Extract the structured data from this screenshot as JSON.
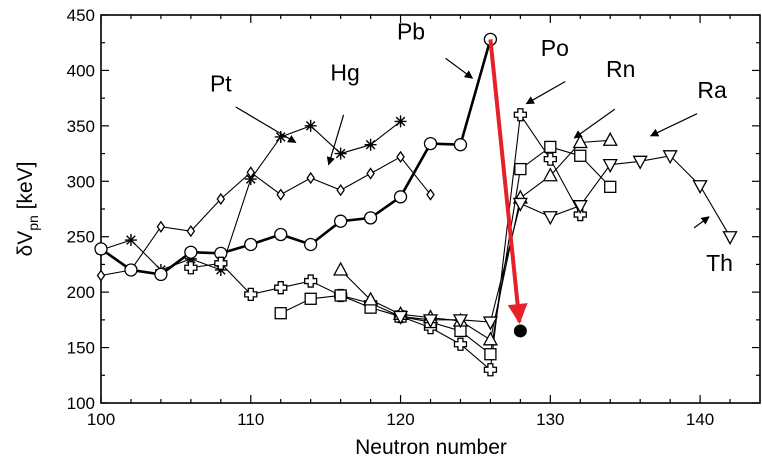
{
  "chart_data": {
    "type": "line",
    "xlabel": "Neutron number",
    "ylabel": {
      "main": "δV",
      "sub": "pn",
      "unit": " [keV]"
    },
    "xlim": [
      100,
      144
    ],
    "ylim": [
      100,
      450
    ],
    "x_ticks": [
      100,
      110,
      120,
      130,
      140
    ],
    "y_ticks": [
      100,
      150,
      200,
      250,
      300,
      350,
      400,
      450
    ],
    "grid": false,
    "legend": "none",
    "series": [
      {
        "name": "Pt",
        "marker": "asterisk",
        "bold": false,
        "x": [
          100,
          102,
          104,
          106,
          108,
          110,
          112,
          114,
          116,
          118,
          120
        ],
        "y": [
          238,
          247,
          220,
          230,
          220,
          302,
          340,
          350,
          325,
          333,
          354
        ]
      },
      {
        "name": "Hg",
        "marker": "diamond",
        "bold": false,
        "x": [
          100,
          102,
          104,
          106,
          108,
          110,
          112,
          114,
          116,
          118,
          120,
          122
        ],
        "y": [
          215,
          220,
          259,
          255,
          284,
          308,
          288,
          303,
          292,
          307,
          322,
          288
        ]
      },
      {
        "name": "Pb",
        "marker": "circle",
        "bold": true,
        "x": [
          100,
          102,
          104,
          106,
          108,
          110,
          112,
          114,
          116,
          118,
          120,
          122,
          124,
          126
        ],
        "y": [
          239,
          220,
          216,
          236,
          235,
          243,
          252,
          243,
          264,
          267,
          286,
          334,
          333,
          428
        ]
      },
      {
        "name": "",
        "marker": "cross",
        "bold": false,
        "x": [
          106,
          108,
          110,
          112,
          114,
          116,
          118,
          120,
          122,
          124,
          126,
          128,
          130,
          132
        ],
        "y": [
          222,
          226,
          198,
          204,
          210,
          197,
          190,
          178,
          168,
          153,
          130,
          360,
          320,
          270
        ]
      },
      {
        "name": "",
        "marker": "square",
        "bold": false,
        "x": [
          112,
          114,
          116,
          118,
          120,
          122,
          124,
          126,
          128,
          130,
          132,
          134
        ],
        "y": [
          181,
          194,
          197,
          186,
          178,
          173,
          165,
          144,
          311,
          331,
          323,
          295
        ]
      },
      {
        "name": "",
        "marker": "triangle-up",
        "bold": false,
        "x": [
          116,
          118,
          120,
          122,
          124,
          126,
          128,
          130,
          132,
          134
        ],
        "y": [
          220,
          193,
          180,
          177,
          174,
          157,
          285,
          305,
          335,
          337
        ]
      },
      {
        "name": "",
        "marker": "triangle-down",
        "bold": false,
        "x": [
          120,
          122,
          124,
          126,
          128,
          130,
          132,
          134,
          136,
          138,
          140,
          142
        ],
        "y": [
          178,
          175,
          175,
          173,
          280,
          268,
          278,
          315,
          318,
          323,
          296,
          250
        ]
      }
    ],
    "highlight": {
      "from": {
        "x": 126,
        "y": 428
      },
      "to": {
        "x": 128,
        "y": 165
      },
      "color": "#e8202a",
      "end_marker": "filled-circle"
    },
    "annotations": [
      {
        "text": "Pt",
        "tx": 108,
        "ty": 381,
        "ax": 109,
        "ay": 367,
        "hx": 113,
        "hy": 335
      },
      {
        "text": "Hg",
        "tx": 116.3,
        "ty": 391,
        "ax": 116.2,
        "ay": 360,
        "hx": 115.2,
        "hy": 315
      },
      {
        "text": "Pb",
        "tx": 120.7,
        "ty": 428,
        "ax": 123,
        "ay": 411,
        "hx": 124.8,
        "hy": 393
      },
      {
        "text": "Po",
        "tx": 130.3,
        "ty": 413,
        "ax": 131,
        "ay": 390,
        "hx": 128.4,
        "hy": 370
      },
      {
        "text": "Rn",
        "tx": 134.7,
        "ty": 394,
        "ax": 134.3,
        "ay": 365,
        "hx": 131.6,
        "hy": 339
      },
      {
        "text": "Ra",
        "tx": 140.8,
        "ty": 375,
        "ax": 139.8,
        "ay": 361,
        "hx": 136.7,
        "hy": 341
      },
      {
        "text": "Th",
        "tx": 141.3,
        "ty": 219,
        "ax": 139.6,
        "ay": 258,
        "hx": 140.6,
        "hy": 268
      }
    ]
  }
}
